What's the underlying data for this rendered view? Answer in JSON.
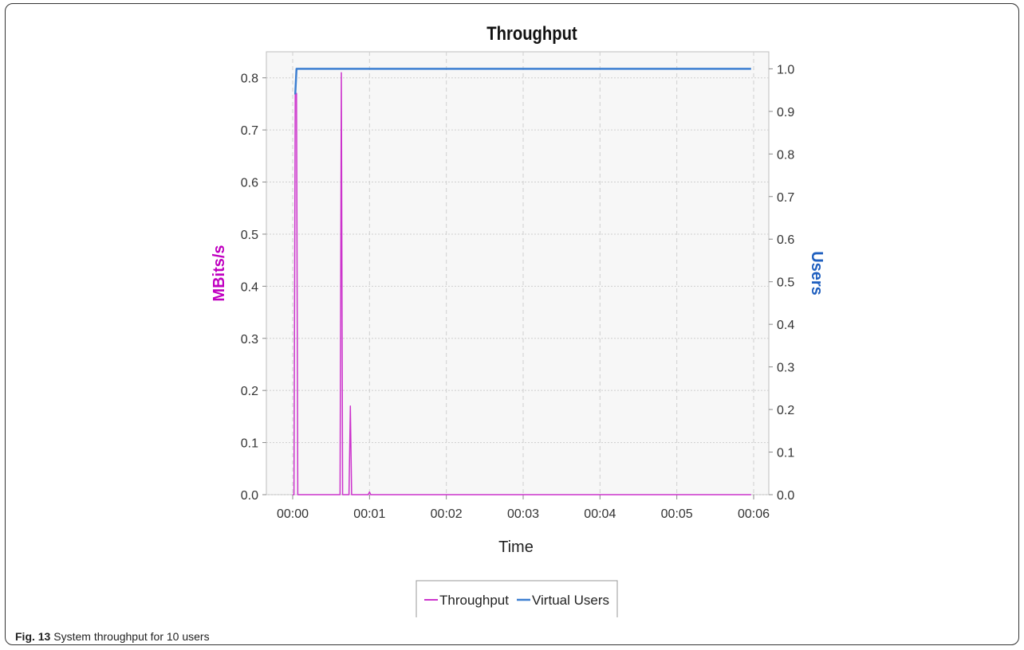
{
  "figure": {
    "label": "Fig. 13",
    "caption": "System throughput for 10 users"
  },
  "colors": {
    "throughput": "#cc33cc",
    "virtual_users": "#3d7fd1",
    "left_axis_label": "#c000c0",
    "right_axis_label": "#1f5fbf",
    "plot_background": "#f7f7f7",
    "grid": "#cfcfcf"
  },
  "chart_data": {
    "type": "line",
    "title": "Throughput",
    "xlabel": "Time",
    "ylabel": "MBits/s",
    "ylabel_right": "Users",
    "x_ticks": [
      "00:00",
      "00:01",
      "00:02",
      "00:03",
      "00:04",
      "00:05",
      "00:06"
    ],
    "xlim": [
      "00:00:00",
      "00:06:00"
    ],
    "ylim": [
      0,
      0.85
    ],
    "ylim_right": [
      0,
      1.04
    ],
    "y_ticks": [
      "0.0",
      "0.1",
      "0.2",
      "0.3",
      "0.4",
      "0.5",
      "0.6",
      "0.7",
      "0.8"
    ],
    "y_ticks_right": [
      "0.0",
      "0.1",
      "0.2",
      "0.3",
      "0.4",
      "0.5",
      "0.6",
      "0.7",
      "0.8",
      "0.9",
      "1.0"
    ],
    "grid": true,
    "legend_position": "bottom-center",
    "series": [
      {
        "name": "Throughput",
        "axis": "left",
        "points": [
          [
            "00:00:00",
            0.0
          ],
          [
            "00:00:01",
            0.0
          ],
          [
            "00:00:02",
            0.77
          ],
          [
            "00:00:03",
            0.77
          ],
          [
            "00:00:04",
            0.0
          ],
          [
            "00:00:37",
            0.0
          ],
          [
            "00:00:38",
            0.81
          ],
          [
            "00:00:39",
            0.0
          ],
          [
            "00:00:44",
            0.0
          ],
          [
            "00:00:45",
            0.17
          ],
          [
            "00:00:46",
            0.0
          ],
          [
            "00:00:59",
            0.0
          ],
          [
            "00:01:00",
            0.005
          ],
          [
            "00:01:01",
            0.0
          ],
          [
            "00:05:58",
            0.0
          ]
        ]
      },
      {
        "name": "Virtual Users",
        "axis": "right",
        "points": [
          [
            "00:00:02",
            0.94
          ],
          [
            "00:00:03",
            1.0
          ],
          [
            "00:05:58",
            1.0
          ]
        ]
      }
    ]
  }
}
